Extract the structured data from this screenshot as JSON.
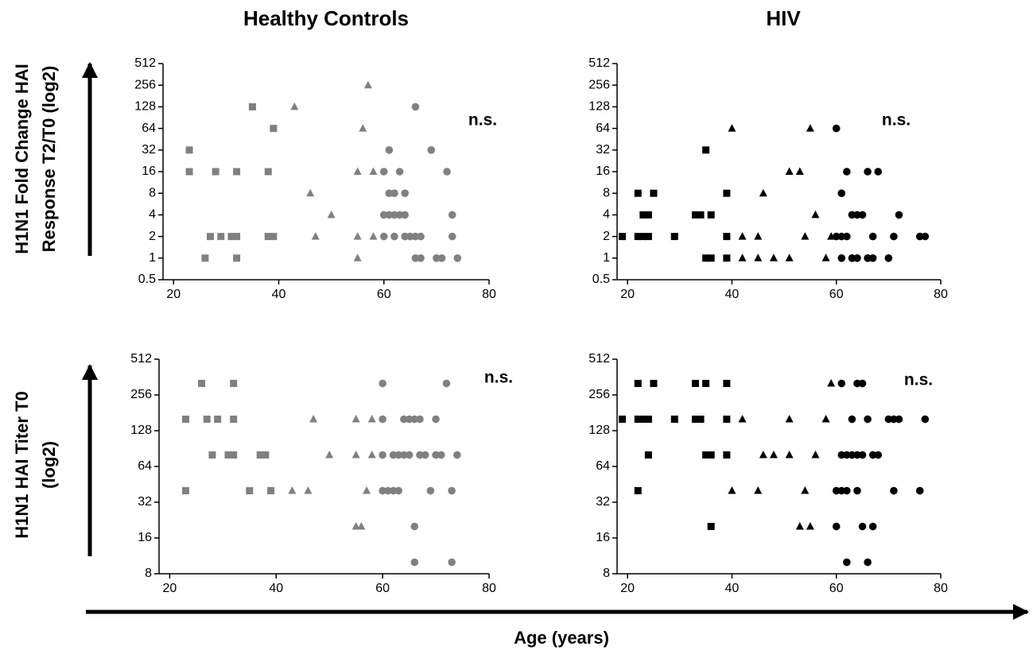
{
  "xlabel": "Age (years)",
  "chart_data": [
    {
      "type": "scatter",
      "title": "Healthy Controls",
      "ylabel": [
        "H1N1 Fold Change HAI",
        "Response T2/T0 (log2)"
      ],
      "annotation": "n.s.",
      "yscale": "log2",
      "xlim": [
        18,
        80
      ],
      "ylim": [
        0.5,
        512
      ],
      "xticks": [
        20,
        40,
        60,
        80
      ],
      "yticks": [
        0.5,
        1,
        2,
        4,
        8,
        16,
        32,
        64,
        128,
        256,
        512
      ],
      "series": [
        {
          "marker": "square",
          "color": "#808080",
          "x": [
            23,
            23,
            26,
            27,
            28,
            29,
            31,
            32,
            32,
            32,
            35,
            38,
            38,
            39,
            39
          ],
          "values": [
            32,
            16,
            1,
            2,
            16,
            2,
            2,
            16,
            2,
            1,
            128,
            16,
            2,
            64,
            2
          ]
        },
        {
          "marker": "triangle",
          "color": "#808080",
          "x": [
            43,
            46,
            47,
            50,
            55,
            55,
            55,
            56,
            57,
            58,
            58
          ],
          "values": [
            128,
            8,
            2,
            4,
            1,
            2,
            16,
            64,
            256,
            16,
            2
          ]
        },
        {
          "marker": "circle",
          "color": "#808080",
          "x": [
            60,
            60,
            60,
            61,
            61,
            61,
            62,
            62,
            62,
            63,
            63,
            64,
            64,
            64,
            65,
            66,
            66,
            66,
            67,
            67,
            69,
            70,
            71,
            72,
            73,
            73,
            74
          ],
          "values": [
            2,
            16,
            4,
            4,
            32,
            8,
            4,
            8,
            2,
            4,
            16,
            4,
            8,
            2,
            2,
            128,
            2,
            1,
            2,
            1,
            32,
            1,
            1,
            16,
            4,
            2,
            1
          ]
        }
      ]
    },
    {
      "type": "scatter",
      "title": "HIV",
      "annotation": "n.s.",
      "yscale": "log2",
      "xlim": [
        18,
        80
      ],
      "ylim": [
        0.5,
        512
      ],
      "xticks": [
        20,
        40,
        60,
        80
      ],
      "yticks": [
        0.5,
        1,
        2,
        4,
        8,
        16,
        32,
        64,
        128,
        256,
        512
      ],
      "series": [
        {
          "marker": "square",
          "color": "#000000",
          "x": [
            19,
            22,
            22,
            23,
            23,
            24,
            24,
            25,
            29,
            33,
            34,
            35,
            35,
            36,
            36,
            39,
            39,
            39
          ],
          "values": [
            2,
            8,
            2,
            2,
            4,
            4,
            2,
            8,
            2,
            4,
            4,
            32,
            1,
            1,
            4,
            8,
            2,
            1
          ]
        },
        {
          "marker": "triangle",
          "color": "#000000",
          "x": [
            40,
            42,
            42,
            45,
            45,
            46,
            48,
            51,
            51,
            53,
            54,
            55,
            56,
            58,
            59
          ],
          "values": [
            64,
            2,
            1,
            2,
            1,
            8,
            1,
            16,
            1,
            16,
            2,
            64,
            4,
            1,
            2
          ]
        },
        {
          "marker": "circle",
          "color": "#000000",
          "x": [
            60,
            60,
            61,
            61,
            61,
            62,
            62,
            63,
            63,
            64,
            64,
            65,
            66,
            66,
            67,
            67,
            68,
            70,
            71,
            72,
            76,
            77
          ],
          "values": [
            64,
            2,
            8,
            1,
            2,
            16,
            2,
            4,
            1,
            4,
            1,
            4,
            16,
            1,
            2,
            1,
            16,
            1,
            2,
            4,
            2,
            2
          ]
        }
      ]
    },
    {
      "type": "scatter",
      "ylabel": [
        "H1N1 HAI Titer T0",
        "(log2)"
      ],
      "annotation": "n.s.",
      "yscale": "log2",
      "xlim": [
        18,
        80
      ],
      "ylim": [
        8,
        512
      ],
      "xticks": [
        20,
        40,
        60,
        80
      ],
      "yticks": [
        8,
        16,
        32,
        64,
        128,
        256,
        512
      ],
      "series": [
        {
          "marker": "square",
          "color": "#808080",
          "x": [
            23,
            23,
            26,
            27,
            28,
            29,
            31,
            32,
            32,
            32,
            37,
            38,
            35,
            39
          ],
          "values": [
            40,
            160,
            320,
            160,
            80,
            160,
            80,
            80,
            320,
            160,
            80,
            80,
            40,
            40
          ]
        },
        {
          "marker": "triangle",
          "color": "#808080",
          "x": [
            43,
            46,
            47,
            50,
            55,
            55,
            56,
            55,
            57,
            58,
            58
          ],
          "values": [
            40,
            40,
            160,
            80,
            160,
            20,
            20,
            80,
            40,
            160,
            80
          ]
        },
        {
          "marker": "circle",
          "color": "#808080",
          "x": [
            60,
            60,
            60,
            60,
            61,
            62,
            63,
            62,
            63,
            64,
            65,
            64,
            65,
            66,
            66,
            66,
            67,
            67,
            68,
            69,
            70,
            70,
            71,
            72,
            73,
            73,
            74
          ],
          "values": [
            320,
            160,
            80,
            40,
            40,
            40,
            40,
            80,
            80,
            80,
            80,
            160,
            160,
            160,
            20,
            10,
            80,
            160,
            80,
            40,
            160,
            80,
            80,
            320,
            40,
            10,
            80
          ]
        }
      ]
    },
    {
      "type": "scatter",
      "annotation": "n.s.",
      "yscale": "log2",
      "xlim": [
        18,
        80
      ],
      "ylim": [
        8,
        512
      ],
      "xticks": [
        20,
        40,
        60,
        80
      ],
      "yticks": [
        8,
        16,
        32,
        64,
        128,
        256,
        512
      ],
      "series": [
        {
          "marker": "square",
          "color": "#000000",
          "x": [
            19,
            22,
            22,
            22,
            23,
            24,
            24,
            25,
            29,
            33,
            33,
            34,
            35,
            35,
            36,
            36,
            39,
            39,
            39
          ],
          "values": [
            160,
            320,
            40,
            160,
            160,
            160,
            80,
            320,
            160,
            320,
            160,
            160,
            320,
            80,
            80,
            20,
            320,
            160,
            80
          ]
        },
        {
          "marker": "triangle",
          "color": "#000000",
          "x": [
            40,
            42,
            45,
            46,
            48,
            51,
            51,
            53,
            54,
            55,
            56,
            58,
            59
          ],
          "values": [
            40,
            160,
            40,
            80,
            80,
            160,
            80,
            20,
            40,
            20,
            80,
            160,
            320
          ]
        },
        {
          "marker": "circle",
          "color": "#000000",
          "x": [
            60,
            60,
            61,
            61,
            61,
            62,
            62,
            62,
            63,
            63,
            64,
            64,
            64,
            65,
            65,
            65,
            66,
            66,
            67,
            67,
            68,
            70,
            71,
            71,
            72,
            76,
            77
          ],
          "values": [
            20,
            40,
            320,
            40,
            80,
            80,
            40,
            10,
            160,
            80,
            80,
            40,
            320,
            320,
            80,
            20,
            160,
            10,
            80,
            20,
            80,
            160,
            160,
            40,
            160,
            40,
            160
          ]
        }
      ]
    }
  ]
}
